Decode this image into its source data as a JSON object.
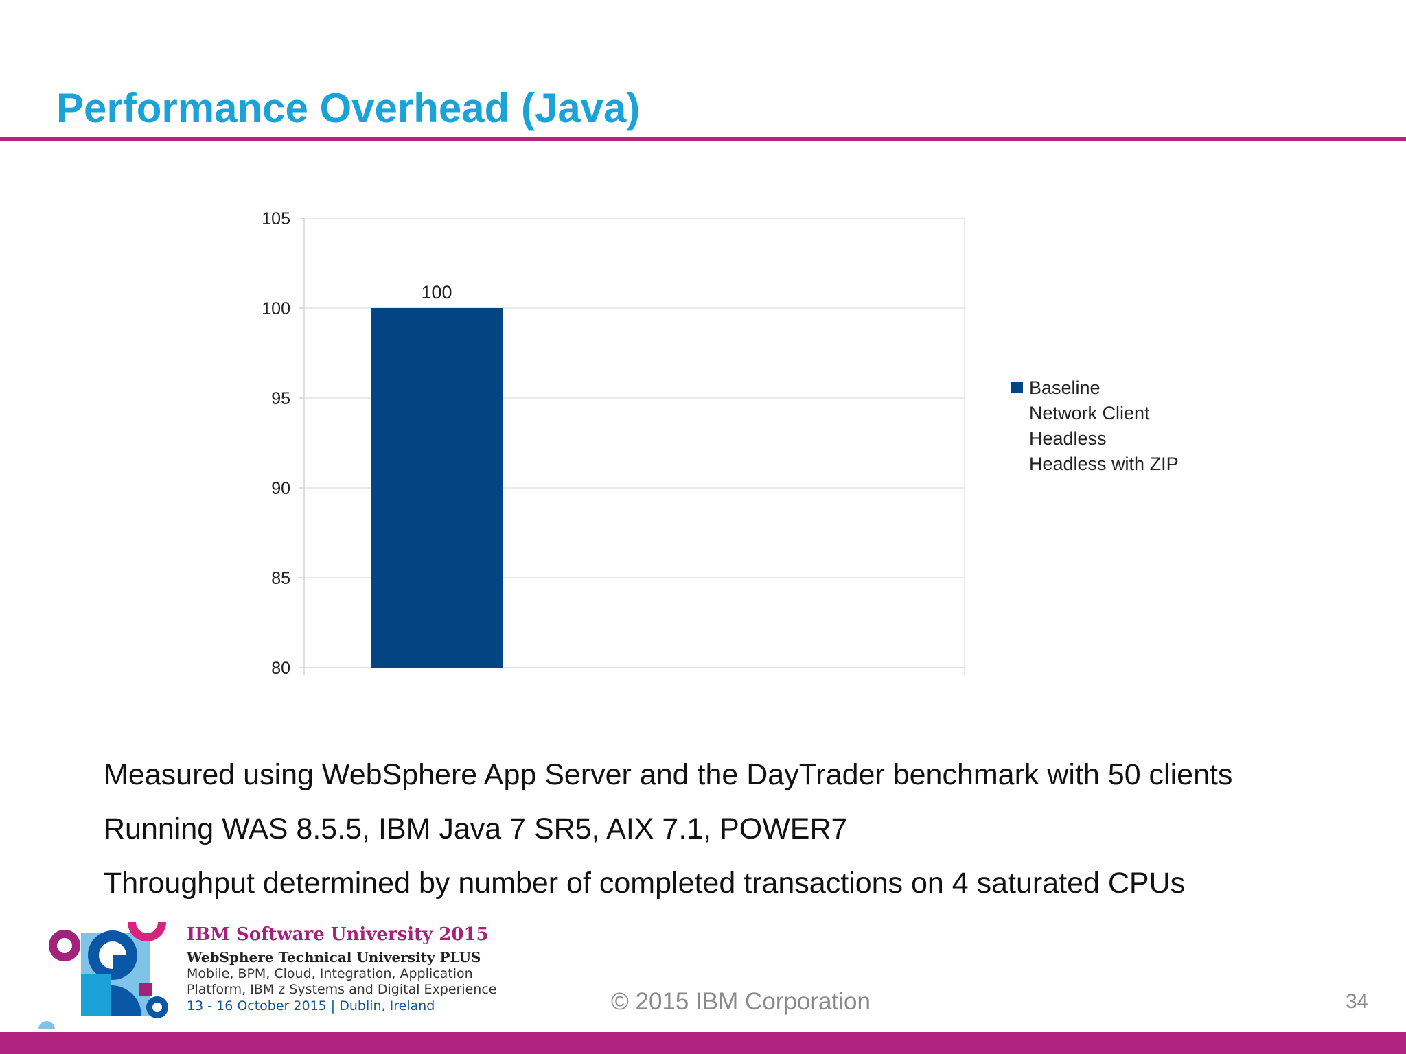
{
  "slide": {
    "title": "Performance Overhead (Java)",
    "page_number": "34",
    "copyright": "© 2015 IBM Corporation"
  },
  "chart_data": {
    "type": "bar",
    "title": "",
    "xlabel": "",
    "ylabel": "",
    "ylim": [
      80,
      105
    ],
    "yticks": [
      80,
      85,
      90,
      95,
      100,
      105
    ],
    "grid": true,
    "legend_position": "right",
    "categories": [
      ""
    ],
    "series": [
      {
        "name": "Baseline",
        "values": [
          100
        ],
        "color": "#034582",
        "data_labels": [
          "100"
        ]
      },
      {
        "name": "Network Client",
        "values": [
          null
        ],
        "color": "#00A3D8",
        "data_labels": []
      },
      {
        "name": "Headless",
        "values": [
          null
        ],
        "color": "#B1237F",
        "data_labels": []
      },
      {
        "name": "Headless with ZIP",
        "values": [
          null
        ],
        "color": "#5AAA46",
        "data_labels": []
      }
    ],
    "legend": [
      "Baseline",
      "Network Client",
      "Headless",
      "Headless with ZIP"
    ]
  },
  "bullets": [
    "Measured using WebSphere App Server and the DayTrader benchmark with 50 clients",
    "Running WAS 8.5.5, IBM Java 7 SR5, AIX 7.1, POWER7",
    "Throughput determined by number of completed transactions on 4 saturated CPUs"
  ],
  "branding": {
    "event_title": "IBM Software University 2015",
    "event_subtitle": "WebSphere Technical University PLUS",
    "line1": "Mobile, BPM, Cloud, Integration, Application",
    "line2": "Platform, IBM z Systems and Digital Experience",
    "dates": "13 - 16 October 2015 | Dublin, Ireland"
  },
  "colors": {
    "title": "#1BA3D9",
    "accent": "#B1237F",
    "bar": "#034582"
  }
}
